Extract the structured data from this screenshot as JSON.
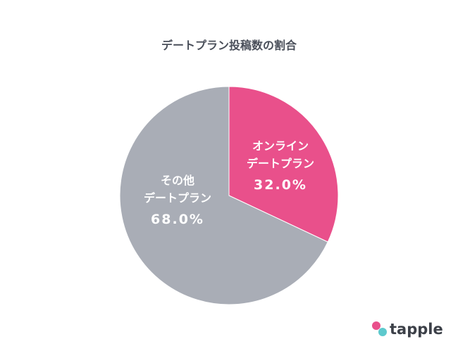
{
  "chart_data": {
    "type": "pie",
    "title": "デートプラン投稿数の割合",
    "categories": [
      "オンライン\nデートプラン",
      "その他\nデートプラン"
    ],
    "values": [
      32,
      68
    ],
    "value_labels": [
      "32.0%",
      "68.0%"
    ],
    "colors": [
      "#e9508b",
      "#a9adb6"
    ]
  },
  "brand": "tapple"
}
